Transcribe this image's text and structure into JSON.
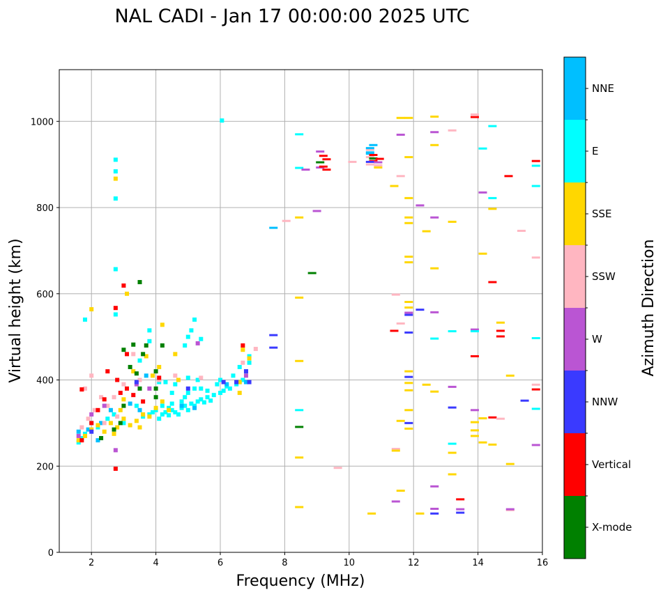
{
  "chart_data": {
    "type": "scatter",
    "title": "NAL CADI - Jan 17 00:00:00 2025 UTC",
    "xlabel": "Frequency (MHz)",
    "ylabel": "Virtual height (km)",
    "xlim": [
      1,
      16
    ],
    "ylim": [
      0,
      1120
    ],
    "xticks": [
      2,
      4,
      6,
      8,
      10,
      12,
      14,
      16
    ],
    "yticks": [
      0,
      200,
      400,
      600,
      800,
      1000
    ],
    "grid": true,
    "colorbar": {
      "label": "Azimuth Direction",
      "categories": [
        "X-mode",
        "Vertical",
        "NNW",
        "W",
        "SSW",
        "SSE",
        "E",
        "NNE"
      ],
      "colors": [
        "#008000",
        "#ff0000",
        "#3a3aff",
        "#ba55d3",
        "#ffb6c1",
        "#ffd700",
        "#00ffff",
        "#00bfff"
      ]
    },
    "point_format": [
      "frequency_mhz",
      "virtual_height_km",
      "direction_index"
    ],
    "points": [
      [
        4.1,
        310,
        6
      ],
      [
        4.2,
        320,
        6
      ],
      [
        4.3,
        325,
        6
      ],
      [
        4.4,
        318,
        6
      ],
      [
        4.5,
        330,
        6
      ],
      [
        4.6,
        325,
        6
      ],
      [
        4.7,
        320,
        6
      ],
      [
        4.8,
        335,
        6
      ],
      [
        4.9,
        340,
        6
      ],
      [
        5.0,
        330,
        6
      ],
      [
        5.1,
        345,
        6
      ],
      [
        5.2,
        340,
        6
      ],
      [
        5.3,
        350,
        6
      ],
      [
        5.4,
        355,
        6
      ],
      [
        5.5,
        348,
        6
      ],
      [
        5.6,
        360,
        6
      ],
      [
        5.8,
        365,
        6
      ],
      [
        6.0,
        370,
        6
      ],
      [
        6.1,
        375,
        6
      ],
      [
        6.3,
        380,
        6
      ],
      [
        6.5,
        390,
        6
      ],
      [
        6.6,
        395,
        6
      ],
      [
        6.7,
        400,
        6
      ],
      [
        6.8,
        420,
        6
      ],
      [
        6.9,
        440,
        6
      ],
      [
        6.9,
        455,
        6
      ],
      [
        6.6,
        430,
        6
      ],
      [
        6.4,
        410,
        6
      ],
      [
        5.9,
        390,
        6
      ],
      [
        5.4,
        380,
        6
      ],
      [
        5.0,
        370,
        6
      ],
      [
        4.8,
        350,
        6
      ],
      [
        4.5,
        345,
        6
      ],
      [
        4.2,
        340,
        6
      ],
      [
        4.0,
        330,
        6
      ],
      [
        3.8,
        320,
        6
      ],
      [
        3.6,
        315,
        6
      ],
      [
        5.3,
        400,
        6
      ],
      [
        5.0,
        405,
        6
      ],
      [
        5.2,
        380,
        6
      ],
      [
        4.3,
        395,
        6
      ],
      [
        4.6,
        390,
        6
      ],
      [
        4.1,
        395,
        6
      ],
      [
        3.8,
        490,
        6
      ],
      [
        5.1,
        515,
        6
      ],
      [
        5.0,
        500,
        6
      ],
      [
        4.9,
        480,
        6
      ],
      [
        5.4,
        495,
        6
      ],
      [
        5.2,
        540,
        6
      ],
      [
        3.8,
        515,
        6
      ],
      [
        3.5,
        445,
        6
      ],
      [
        3.0,
        300,
        6
      ],
      [
        2.7,
        320,
        6
      ],
      [
        2.2,
        290,
        6
      ],
      [
        1.8,
        275,
        6
      ],
      [
        1.6,
        255,
        6
      ],
      [
        1.7,
        265,
        6
      ],
      [
        2.0,
        300,
        6
      ],
      [
        2.5,
        310,
        6
      ],
      [
        1.8,
        540,
        6
      ],
      [
        4.5,
        370,
        6
      ],
      [
        6.0,
        400,
        6
      ],
      [
        3.4,
        340,
        6
      ],
      [
        4.9,
        360,
        6
      ],
      [
        5.6,
        375,
        6
      ],
      [
        6.2,
        385,
        6
      ],
      [
        4.4,
        335,
        6
      ],
      [
        3.9,
        325,
        6
      ],
      [
        5.7,
        352,
        6
      ],
      [
        1.6,
        280,
        7
      ],
      [
        1.9,
        285,
        7
      ],
      [
        2.3,
        300,
        7
      ],
      [
        2.6,
        330,
        7
      ],
      [
        3.2,
        345,
        7
      ],
      [
        3.5,
        330,
        7
      ],
      [
        4.8,
        340,
        7
      ],
      [
        5.2,
        335,
        7
      ],
      [
        6.2,
        390,
        7
      ],
      [
        6.8,
        395,
        7
      ],
      [
        2.2,
        260,
        7
      ],
      [
        3.7,
        410,
        7
      ],
      [
        1.6,
        260,
        5
      ],
      [
        1.8,
        270,
        5
      ],
      [
        2.0,
        285,
        5
      ],
      [
        2.2,
        295,
        5
      ],
      [
        2.4,
        280,
        5
      ],
      [
        2.6,
        300,
        5
      ],
      [
        2.8,
        290,
        5
      ],
      [
        3.0,
        310,
        5
      ],
      [
        3.2,
        295,
        5
      ],
      [
        3.4,
        305,
        5
      ],
      [
        3.6,
        320,
        5
      ],
      [
        3.8,
        315,
        5
      ],
      [
        4.0,
        335,
        5
      ],
      [
        4.2,
        350,
        5
      ],
      [
        4.4,
        330,
        5
      ],
      [
        3.9,
        410,
        5
      ],
      [
        4.1,
        430,
        5
      ],
      [
        4.2,
        528,
        5
      ],
      [
        3.3,
        420,
        5
      ],
      [
        3.7,
        455,
        5
      ],
      [
        2.9,
        330,
        5
      ],
      [
        4.7,
        400,
        5
      ],
      [
        6.6,
        395,
        5
      ],
      [
        6.7,
        470,
        5
      ],
      [
        6.9,
        450,
        5
      ],
      [
        3.1,
        600,
        5
      ],
      [
        3.0,
        355,
        5
      ],
      [
        4.6,
        460,
        5
      ],
      [
        6.6,
        370,
        5
      ],
      [
        2.0,
        564,
        5
      ],
      [
        3.5,
        290,
        5
      ],
      [
        2.7,
        275,
        5
      ],
      [
        1.7,
        290,
        4
      ],
      [
        1.9,
        310,
        4
      ],
      [
        2.1,
        330,
        4
      ],
      [
        2.4,
        300,
        4
      ],
      [
        2.5,
        340,
        4
      ],
      [
        2.7,
        360,
        4
      ],
      [
        3.0,
        390,
        4
      ],
      [
        3.3,
        460,
        4
      ],
      [
        3.5,
        400,
        4
      ],
      [
        4.1,
        400,
        4
      ],
      [
        5.4,
        405,
        4
      ],
      [
        1.8,
        380,
        4
      ],
      [
        2.0,
        410,
        4
      ],
      [
        2.8,
        315,
        4
      ],
      [
        6.7,
        440,
        4
      ],
      [
        7.1,
        472,
        4
      ],
      [
        4.6,
        410,
        4
      ],
      [
        2.3,
        360,
        4
      ],
      [
        1.7,
        260,
        1
      ],
      [
        2.0,
        300,
        1
      ],
      [
        2.2,
        330,
        1
      ],
      [
        2.4,
        355,
        1
      ],
      [
        2.5,
        420,
        1
      ],
      [
        2.9,
        370,
        1
      ],
      [
        3.1,
        380,
        1
      ],
      [
        3.3,
        365,
        1
      ],
      [
        3.6,
        350,
        1
      ],
      [
        4.1,
        405,
        1
      ],
      [
        6.7,
        480,
        1
      ],
      [
        1.7,
        378,
        1
      ],
      [
        2.8,
        400,
        1
      ],
      [
        3.1,
        460,
        1
      ],
      [
        3.0,
        619,
        1
      ],
      [
        2.75,
        567,
        1
      ],
      [
        2.75,
        194,
        1
      ],
      [
        2.3,
        265,
        0
      ],
      [
        2.7,
        285,
        0
      ],
      [
        3.0,
        340,
        0
      ],
      [
        3.2,
        430,
        0
      ],
      [
        3.4,
        415,
        0
      ],
      [
        3.6,
        460,
        0
      ],
      [
        4.0,
        380,
        0
      ],
      [
        4.0,
        360,
        0
      ],
      [
        3.7,
        480,
        0
      ],
      [
        4.2,
        480,
        0
      ],
      [
        3.0,
        470,
        0
      ],
      [
        3.3,
        482,
        0
      ],
      [
        4.0,
        420,
        0
      ],
      [
        2.9,
        300,
        0
      ],
      [
        3.5,
        380,
        0
      ],
      [
        3.5,
        627,
        0
      ],
      [
        1.6,
        270,
        3
      ],
      [
        2.0,
        320,
        3
      ],
      [
        2.4,
        340,
        3
      ],
      [
        3.4,
        390,
        3
      ],
      [
        3.8,
        380,
        3
      ],
      [
        5.3,
        485,
        3
      ],
      [
        6.8,
        410,
        3
      ],
      [
        2.75,
        237,
        3
      ],
      [
        2.0,
        280,
        2
      ],
      [
        3.4,
        395,
        2
      ],
      [
        5.0,
        380,
        2
      ],
      [
        6.8,
        420,
        2
      ],
      [
        6.9,
        395,
        2
      ],
      [
        6.5,
        395,
        2
      ],
      [
        6.1,
        395,
        2
      ],
      [
        2.75,
        911,
        6
      ],
      [
        2.75,
        884,
        6
      ],
      [
        2.75,
        867,
        5
      ],
      [
        2.75,
        821,
        6
      ],
      [
        2.75,
        657,
        6
      ],
      [
        2.75,
        552,
        6
      ],
      [
        6.05,
        1002,
        6
      ],
      [
        8.45,
        970,
        6
      ],
      [
        8.45,
        892,
        6
      ],
      [
        8.65,
        888,
        3
      ],
      [
        8.45,
        777,
        5
      ],
      [
        8.45,
        591,
        5
      ],
      [
        8.85,
        648,
        0
      ],
      [
        8.45,
        444,
        5
      ],
      [
        8.45,
        330,
        6
      ],
      [
        8.45,
        291,
        0
      ],
      [
        8.45,
        220,
        5
      ],
      [
        8.45,
        105,
        5
      ],
      [
        9.1,
        930,
        3
      ],
      [
        9.1,
        905,
        0
      ],
      [
        9.1,
        893,
        3
      ],
      [
        9.2,
        920,
        1
      ],
      [
        9.2,
        895,
        1
      ],
      [
        9.3,
        888,
        1
      ],
      [
        9.3,
        912,
        1
      ],
      [
        9.0,
        792,
        3
      ],
      [
        8.05,
        769,
        4
      ],
      [
        7.65,
        753,
        7
      ],
      [
        7.65,
        504,
        2
      ],
      [
        7.65,
        475,
        2
      ],
      [
        10.1,
        906,
        4
      ],
      [
        10.75,
        945,
        7
      ],
      [
        10.65,
        934,
        4
      ],
      [
        10.65,
        925,
        7
      ],
      [
        10.75,
        922,
        1
      ],
      [
        10.65,
        917,
        4
      ],
      [
        10.75,
        914,
        0
      ],
      [
        10.75,
        908,
        1
      ],
      [
        10.65,
        906,
        2
      ],
      [
        10.65,
        900,
        4
      ],
      [
        10.95,
        913,
        1
      ],
      [
        10.9,
        905,
        3
      ],
      [
        10.9,
        893,
        5
      ],
      [
        10.9,
        898,
        4
      ],
      [
        10.65,
        938,
        7
      ],
      [
        10.65,
        928,
        7
      ],
      [
        11.6,
        1008,
        5
      ],
      [
        11.85,
        1008,
        5
      ],
      [
        11.6,
        969,
        3
      ],
      [
        11.85,
        917,
        5
      ],
      [
        11.4,
        850,
        5
      ],
      [
        11.6,
        873,
        4
      ],
      [
        12.2,
        805,
        3
      ],
      [
        11.85,
        822,
        5
      ],
      [
        11.85,
        777,
        5
      ],
      [
        11.85,
        764,
        5
      ],
      [
        11.85,
        686,
        5
      ],
      [
        11.85,
        673,
        5
      ],
      [
        11.45,
        598,
        4
      ],
      [
        11.85,
        581,
        5
      ],
      [
        11.85,
        568,
        5
      ],
      [
        11.85,
        556,
        3
      ],
      [
        11.85,
        551,
        2
      ],
      [
        12.2,
        563,
        2
      ],
      [
        11.85,
        510,
        2
      ],
      [
        11.4,
        514,
        1
      ],
      [
        11.6,
        531,
        4
      ],
      [
        11.85,
        420,
        5
      ],
      [
        11.85,
        407,
        2
      ],
      [
        11.85,
        393,
        5
      ],
      [
        11.85,
        376,
        5
      ],
      [
        11.85,
        330,
        5
      ],
      [
        11.85,
        300,
        2
      ],
      [
        11.85,
        287,
        5
      ],
      [
        11.6,
        305,
        5
      ],
      [
        11.45,
        240,
        4
      ],
      [
        11.45,
        236,
        5
      ],
      [
        11.45,
        118,
        3
      ],
      [
        11.6,
        143,
        5
      ],
      [
        12.2,
        90,
        5
      ],
      [
        12.65,
        1011,
        5
      ],
      [
        12.65,
        975,
        3
      ],
      [
        12.65,
        945,
        5
      ],
      [
        12.65,
        777,
        3
      ],
      [
        12.65,
        659,
        5
      ],
      [
        12.65,
        557,
        3
      ],
      [
        12.65,
        496,
        6
      ],
      [
        12.65,
        373,
        5
      ],
      [
        12.65,
        153,
        3
      ],
      [
        12.65,
        101,
        3
      ],
      [
        12.65,
        90,
        2
      ],
      [
        12.4,
        745,
        5
      ],
      [
        12.4,
        389,
        5
      ],
      [
        13.2,
        979,
        4
      ],
      [
        13.2,
        767,
        5
      ],
      [
        13.2,
        513,
        6
      ],
      [
        13.2,
        384,
        3
      ],
      [
        13.2,
        336,
        2
      ],
      [
        13.2,
        252,
        6
      ],
      [
        13.2,
        231,
        5
      ],
      [
        13.2,
        181,
        5
      ],
      [
        13.45,
        123,
        1
      ],
      [
        13.45,
        100,
        3
      ],
      [
        13.45,
        92,
        2
      ],
      [
        13.9,
        1010,
        1
      ],
      [
        13.9,
        1016,
        4
      ],
      [
        14.15,
        937,
        6
      ],
      [
        14.15,
        835,
        3
      ],
      [
        14.15,
        693,
        5
      ],
      [
        13.9,
        517,
        3
      ],
      [
        13.9,
        513,
        6
      ],
      [
        13.9,
        455,
        1
      ],
      [
        13.9,
        330,
        3
      ],
      [
        13.9,
        302,
        5
      ],
      [
        13.9,
        283,
        5
      ],
      [
        13.9,
        270,
        5
      ],
      [
        14.15,
        311,
        5
      ],
      [
        14.15,
        255,
        5
      ],
      [
        14.45,
        989,
        6
      ],
      [
        14.45,
        822,
        6
      ],
      [
        14.45,
        797,
        5
      ],
      [
        14.45,
        627,
        1
      ],
      [
        14.45,
        313,
        1
      ],
      [
        14.45,
        250,
        5
      ],
      [
        14.7,
        533,
        5
      ],
      [
        14.7,
        514,
        1
      ],
      [
        14.7,
        501,
        1
      ],
      [
        14.7,
        310,
        4
      ],
      [
        14.95,
        873,
        1
      ],
      [
        15.0,
        410,
        5
      ],
      [
        15.0,
        205,
        5
      ],
      [
        15.0,
        98,
        4
      ],
      [
        15.0,
        100,
        3
      ],
      [
        15.35,
        746,
        4
      ],
      [
        15.45,
        352,
        2
      ],
      [
        15.8,
        908,
        1
      ],
      [
        15.8,
        897,
        6
      ],
      [
        15.8,
        850,
        6
      ],
      [
        15.8,
        684,
        4
      ],
      [
        15.8,
        497,
        6
      ],
      [
        15.8,
        389,
        4
      ],
      [
        15.8,
        378,
        1
      ],
      [
        15.8,
        333,
        6
      ],
      [
        15.8,
        249,
        3
      ],
      [
        9.65,
        196,
        4
      ],
      [
        10.7,
        90,
        5
      ]
    ]
  }
}
